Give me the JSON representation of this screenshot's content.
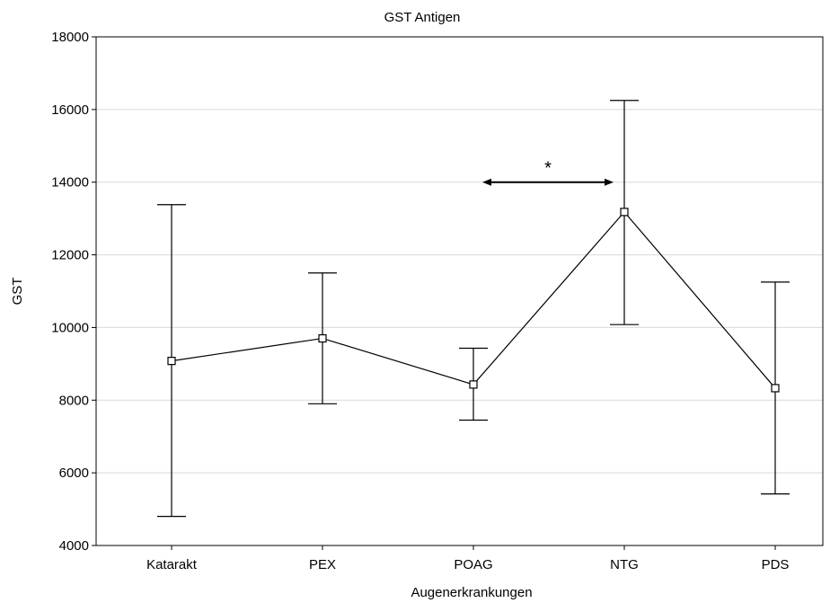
{
  "chart_data": {
    "type": "line",
    "title": "GST Antigen",
    "xlabel": "Augenerkrankungen",
    "ylabel": "GST",
    "categories": [
      "Katarakt",
      "PEX",
      "POAG",
      "NTG",
      "PDS"
    ],
    "series": [
      {
        "values": [
          9080,
          9700,
          8430,
          13180,
          8330
        ],
        "upper": [
          13380,
          11500,
          9430,
          16250,
          11250
        ],
        "lower": [
          4800,
          7900,
          7450,
          10080,
          5420
        ]
      }
    ],
    "ylim": [
      4000,
      18000
    ],
    "yticks": [
      4000,
      6000,
      8000,
      10000,
      12000,
      14000,
      16000,
      18000
    ],
    "grid": true,
    "annotation": {
      "text": "*",
      "from_category": "POAG",
      "to_category": "NTG",
      "y": 14000
    }
  }
}
